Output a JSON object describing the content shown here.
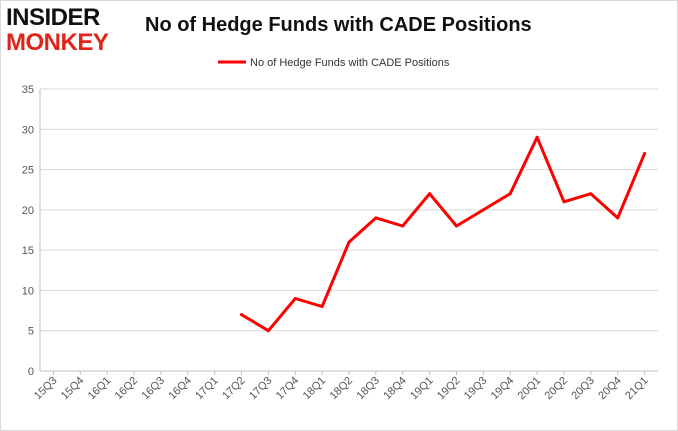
{
  "logo": {
    "line1": "INSIDER",
    "line2": "MONKEY"
  },
  "colors": {
    "series": "#ff0000",
    "grid": "#d9d9d9",
    "axis": "#bfbfbf",
    "logo_accent": "#e2231a"
  },
  "chart_data": {
    "type": "line",
    "title": "No of Hedge Funds with CADE Positions",
    "categories": [
      "15Q3",
      "15Q4",
      "16Q1",
      "16Q2",
      "16Q3",
      "16Q4",
      "17Q1",
      "17Q2",
      "17Q3",
      "17Q4",
      "18Q1",
      "18Q2",
      "18Q3",
      "18Q4",
      "19Q1",
      "19Q2",
      "19Q3",
      "19Q4",
      "20Q1",
      "20Q2",
      "20Q3",
      "20Q4",
      "21Q1"
    ],
    "series": [
      {
        "name": "No of Hedge Funds with CADE Positions",
        "values": [
          null,
          null,
          null,
          null,
          null,
          null,
          null,
          7,
          5,
          9,
          8,
          16,
          19,
          18,
          22,
          18,
          20,
          22,
          29,
          21,
          22,
          19,
          27
        ]
      }
    ],
    "ylim": [
      0,
      35
    ],
    "yticks": [
      0,
      5,
      10,
      15,
      20,
      25,
      30,
      35
    ],
    "grid": true,
    "legend": "top-center",
    "xlabel": "",
    "ylabel": ""
  }
}
